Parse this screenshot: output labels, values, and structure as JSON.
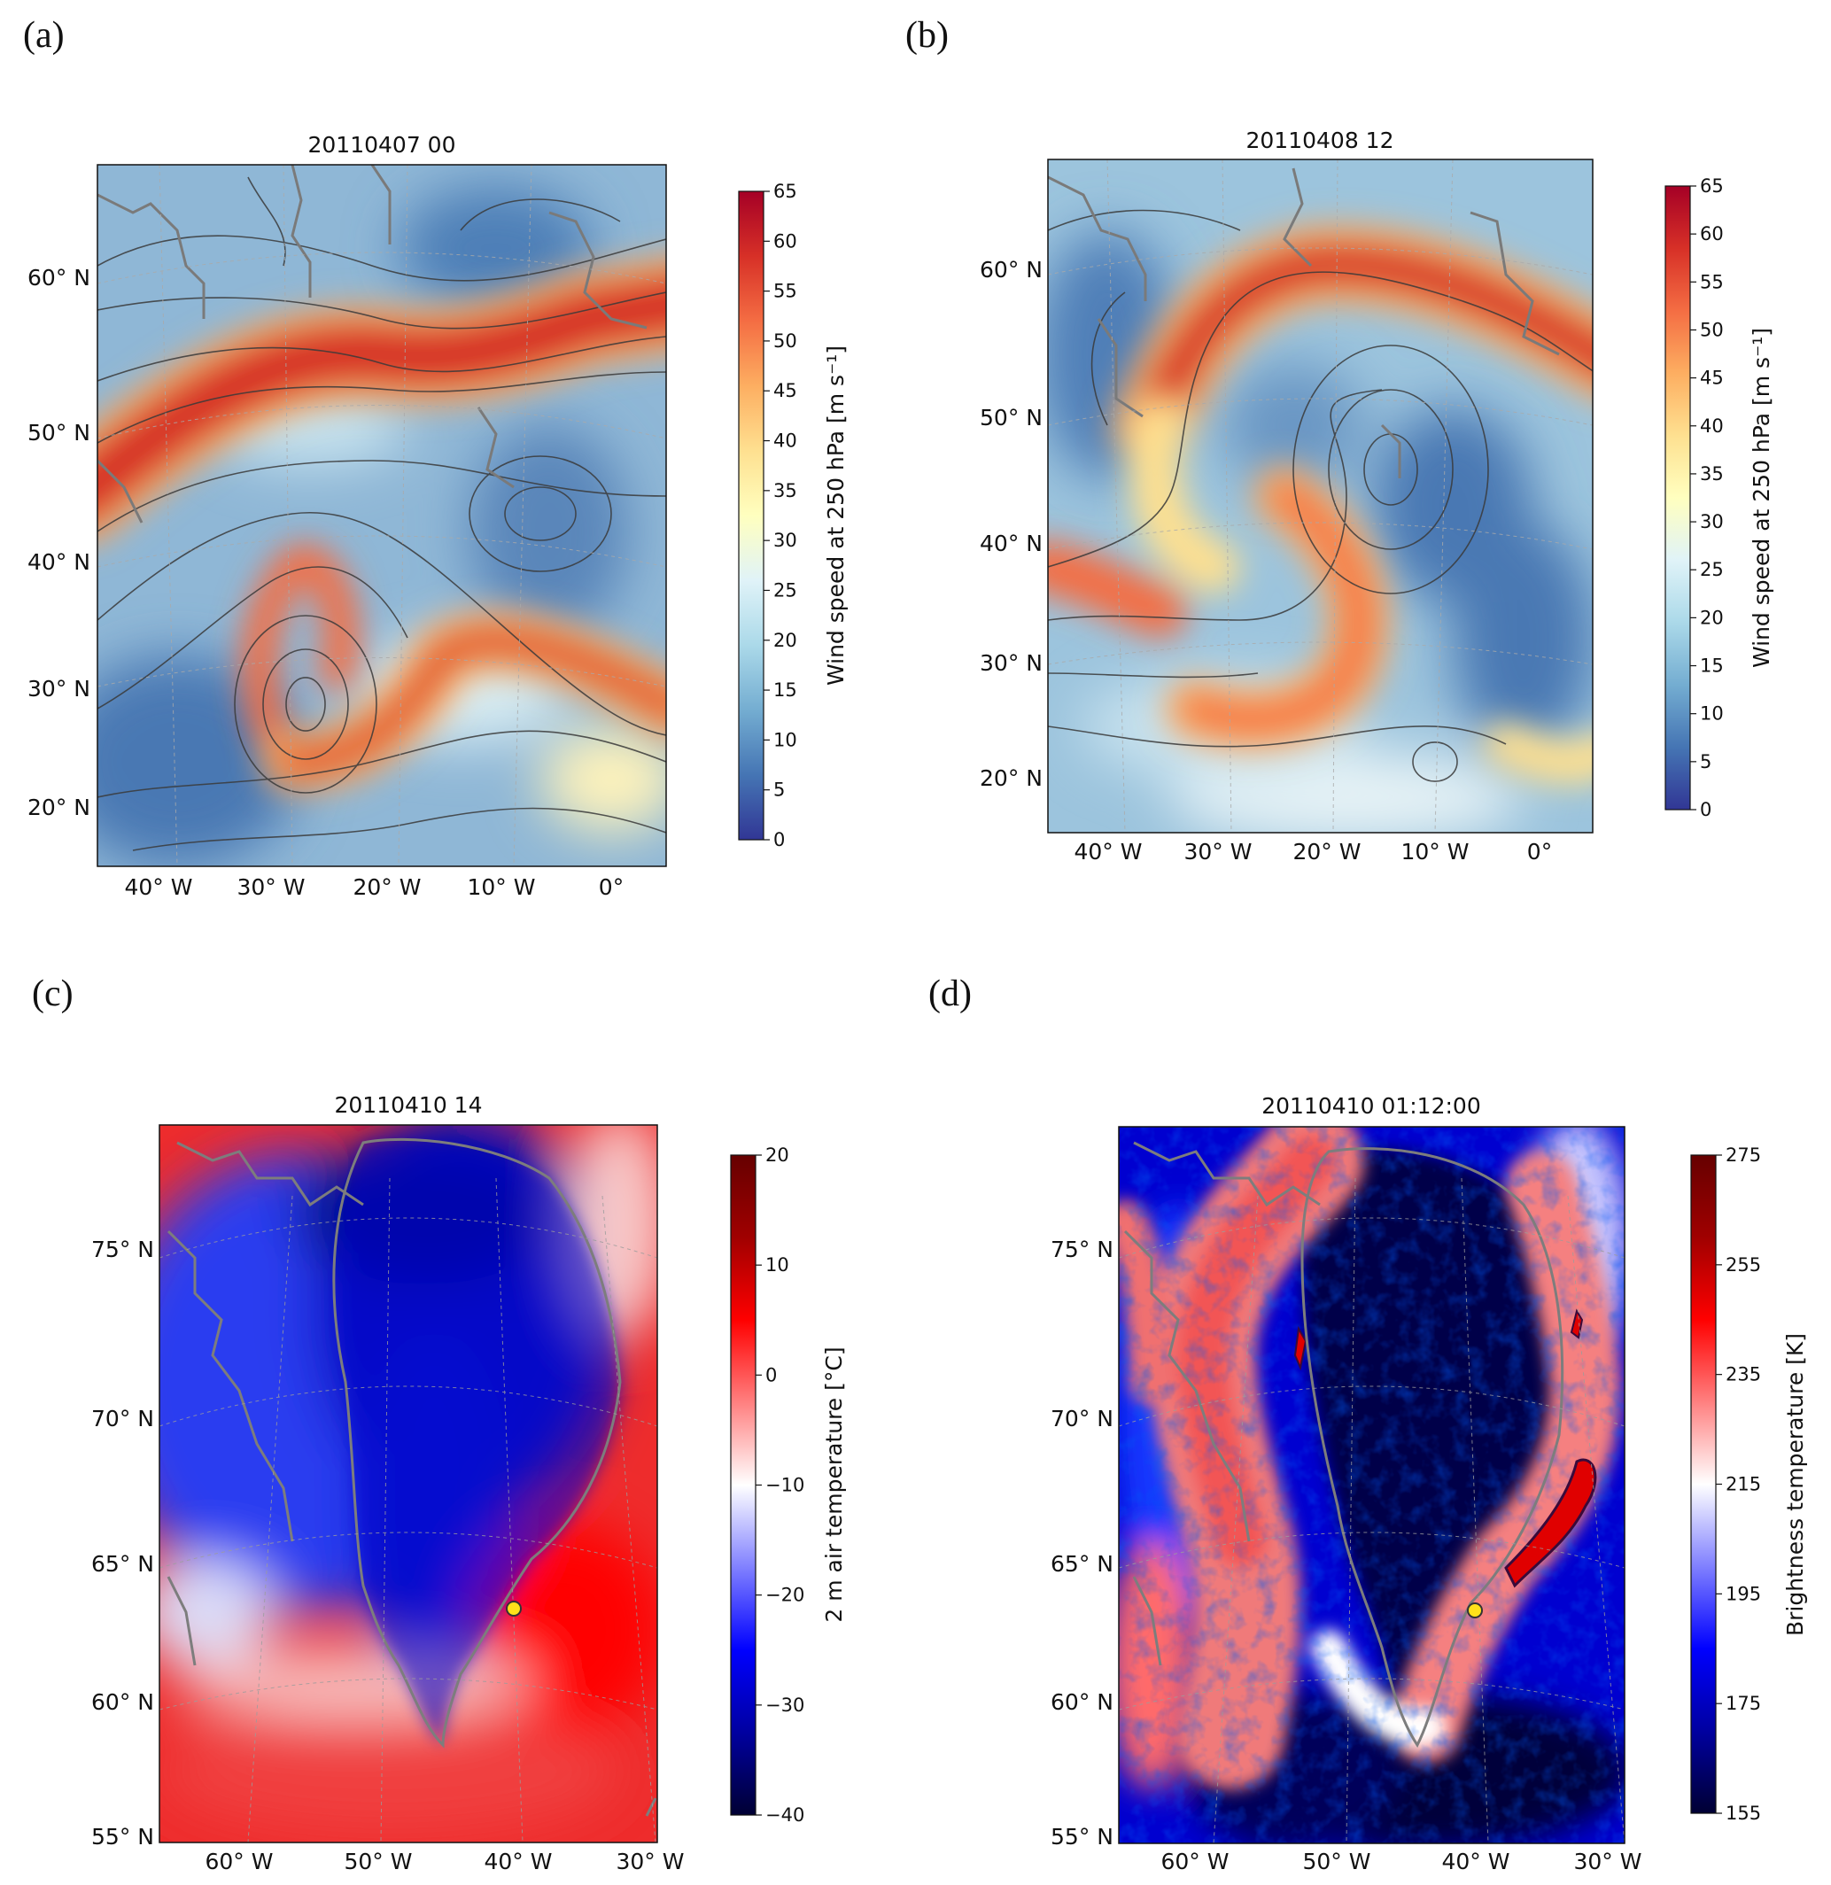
{
  "panels": [
    {
      "label": "(a)"
    },
    {
      "label": "(b)"
    },
    {
      "label": "(c)"
    },
    {
      "label": "(d)"
    }
  ],
  "chart_data": [
    {
      "type": "heatmap",
      "panel": "(a)",
      "title": "20110407 00",
      "field": "Wind speed at 250 hPa with streamlines",
      "x_tick_labels": [
        "40° W",
        "30° W",
        "20° W",
        "10° W",
        "0°"
      ],
      "y_tick_labels": [
        "60° N",
        "50° N",
        "40° N",
        "30° N",
        "20° N"
      ],
      "colorbar": {
        "label": "Wind speed at 250 hPa [m s⁻¹]",
        "min": 0,
        "max": 65,
        "ticks": [
          0,
          5,
          10,
          15,
          20,
          25,
          30,
          35,
          40,
          45,
          50,
          55,
          60,
          65
        ],
        "colormap": [
          "#313695",
          "#4575b4",
          "#74add1",
          "#abd9e9",
          "#e0f3f8",
          "#ffffbf",
          "#fee090",
          "#fdae61",
          "#f46d43",
          "#d73027",
          "#a50026"
        ]
      }
    },
    {
      "type": "heatmap",
      "panel": "(b)",
      "title": "20110408 12",
      "field": "Wind speed at 250 hPa with streamlines",
      "x_tick_labels": [
        "40° W",
        "30° W",
        "20° W",
        "10° W",
        "0°"
      ],
      "y_tick_labels": [
        "60° N",
        "50° N",
        "40° N",
        "30° N",
        "20° N"
      ],
      "colorbar": {
        "label": "Wind speed at 250 hPa [m s⁻¹]",
        "min": 0,
        "max": 65,
        "ticks": [
          0,
          5,
          10,
          15,
          20,
          25,
          30,
          35,
          40,
          45,
          50,
          55,
          60,
          65
        ],
        "colormap": [
          "#313695",
          "#4575b4",
          "#74add1",
          "#abd9e9",
          "#e0f3f8",
          "#ffffbf",
          "#fee090",
          "#fdae61",
          "#f46d43",
          "#d73027",
          "#a50026"
        ]
      }
    },
    {
      "type": "heatmap",
      "panel": "(c)",
      "title": "20110410 14",
      "field": "2 m air temperature",
      "x_tick_labels": [
        "60° W",
        "50° W",
        "40° W",
        "30° W"
      ],
      "y_tick_labels": [
        "75° N",
        "70° N",
        "65° N",
        "60° N",
        "55° N"
      ],
      "colorbar": {
        "label": "2 m air temperature [°C]",
        "min": -40,
        "max": 20,
        "ticks": [
          -40,
          -30,
          -20,
          -10,
          0,
          10,
          20
        ],
        "colormap": [
          "#000033",
          "#0000a0",
          "#0000ff",
          "#8080ff",
          "#ffffff",
          "#ff8080",
          "#ff0000",
          "#a00000",
          "#660000"
        ]
      }
    },
    {
      "type": "heatmap",
      "panel": "(d)",
      "title": "20110410 01:12:00",
      "field": "Brightness temperature",
      "x_tick_labels": [
        "60° W",
        "50° W",
        "40° W",
        "30° W"
      ],
      "y_tick_labels": [
        "75° N",
        "70° N",
        "65° N",
        "60° N",
        "55° N"
      ],
      "colorbar": {
        "label": "Brightness temperature [K]",
        "min": 155,
        "max": 275,
        "ticks": [
          155,
          175,
          195,
          215,
          235,
          255,
          275
        ],
        "colormap": [
          "#000033",
          "#0000a0",
          "#0000ff",
          "#8080ff",
          "#ffffff",
          "#ff8080",
          "#ff0000",
          "#a00000",
          "#660000"
        ]
      }
    }
  ]
}
